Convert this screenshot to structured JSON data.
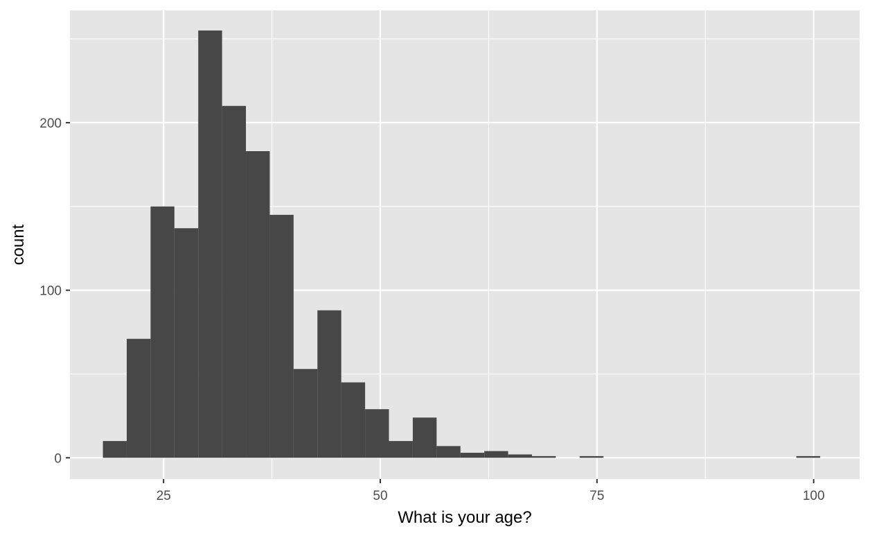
{
  "chart_data": {
    "type": "bar",
    "title": "",
    "xlabel": "What is your age?",
    "ylabel": "count",
    "xlim": [
      14.2,
      105.3
    ],
    "ylim": [
      -12.7,
      267
    ],
    "x_ticks": [
      25,
      50,
      75,
      100
    ],
    "y_ticks": [
      0,
      100,
      200
    ],
    "x_minor": [
      37.5,
      62.5,
      87.5
    ],
    "y_minor": [
      50,
      150,
      250
    ],
    "bin_width": 2.75,
    "bins": [
      {
        "x0": 18.0,
        "x1": 20.75,
        "count": 10
      },
      {
        "x0": 20.75,
        "x1": 23.5,
        "count": 71
      },
      {
        "x0": 23.5,
        "x1": 26.25,
        "count": 150
      },
      {
        "x0": 26.25,
        "x1": 29.0,
        "count": 137
      },
      {
        "x0": 29.0,
        "x1": 31.75,
        "count": 255
      },
      {
        "x0": 31.75,
        "x1": 34.5,
        "count": 210
      },
      {
        "x0": 34.5,
        "x1": 37.25,
        "count": 183
      },
      {
        "x0": 37.25,
        "x1": 40.0,
        "count": 145
      },
      {
        "x0": 40.0,
        "x1": 42.75,
        "count": 53
      },
      {
        "x0": 42.75,
        "x1": 45.5,
        "count": 88
      },
      {
        "x0": 45.5,
        "x1": 48.25,
        "count": 45
      },
      {
        "x0": 48.25,
        "x1": 51.0,
        "count": 29
      },
      {
        "x0": 51.0,
        "x1": 53.75,
        "count": 10
      },
      {
        "x0": 53.75,
        "x1": 56.5,
        "count": 24
      },
      {
        "x0": 56.5,
        "x1": 59.25,
        "count": 7
      },
      {
        "x0": 59.25,
        "x1": 62.0,
        "count": 3
      },
      {
        "x0": 62.0,
        "x1": 64.75,
        "count": 4
      },
      {
        "x0": 64.75,
        "x1": 67.5,
        "count": 2
      },
      {
        "x0": 67.5,
        "x1": 70.25,
        "count": 1
      },
      {
        "x0": 73.0,
        "x1": 75.75,
        "count": 1
      },
      {
        "x0": 98.0,
        "x1": 100.75,
        "count": 1
      }
    ],
    "grid": true,
    "colors": {
      "panel": "#e5e5e5",
      "grid": "#ffffff",
      "bar": "#474747",
      "tick": "#333333",
      "tick_label": "#4d4d4d"
    }
  }
}
